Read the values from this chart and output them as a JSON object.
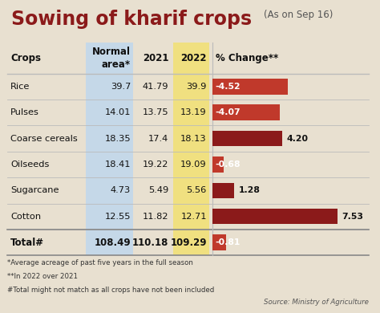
{
  "title_main": "Sowing of kharif crops",
  "title_sub": "(As on Sep 16)",
  "rows": [
    [
      "Rice",
      "39.7",
      "41.79",
      "39.9",
      "-4.52"
    ],
    [
      "Pulses",
      "14.01",
      "13.75",
      "13.19",
      "-4.07"
    ],
    [
      "Coarse cereals",
      "18.35",
      "17.4",
      "18.13",
      "4.20"
    ],
    [
      "Oilseeds",
      "18.41",
      "19.22",
      "19.09",
      "-0.68"
    ],
    [
      "Sugarcane",
      "4.73",
      "5.49",
      "5.56",
      "1.28"
    ],
    [
      "Cotton",
      "12.55",
      "11.82",
      "12.71",
      "7.53"
    ]
  ],
  "total_row": [
    "Total#",
    "108.49",
    "110.18",
    "109.29",
    "-0.81"
  ],
  "pct_changes": [
    -4.52,
    -4.07,
    4.2,
    -0.68,
    1.28,
    7.53
  ],
  "total_pct": -0.81,
  "footnotes": [
    "*Average acreage of past five years in the full season",
    "**In 2022 over 2021",
    "#Total might not match as all crops have not been included"
  ],
  "source": "Source: Ministry of Agriculture",
  "bg_color": "#e8e0d0",
  "col_normal_bg": "#c5d8e8",
  "col_2022_bg": "#f0e080",
  "bar_neg_color": "#c0392b",
  "bar_pos_color": "#8b1a1a",
  "table_line_color": "#bbbbbb",
  "title_color": "#8b1a1a",
  "max_bar_value": 8.5
}
